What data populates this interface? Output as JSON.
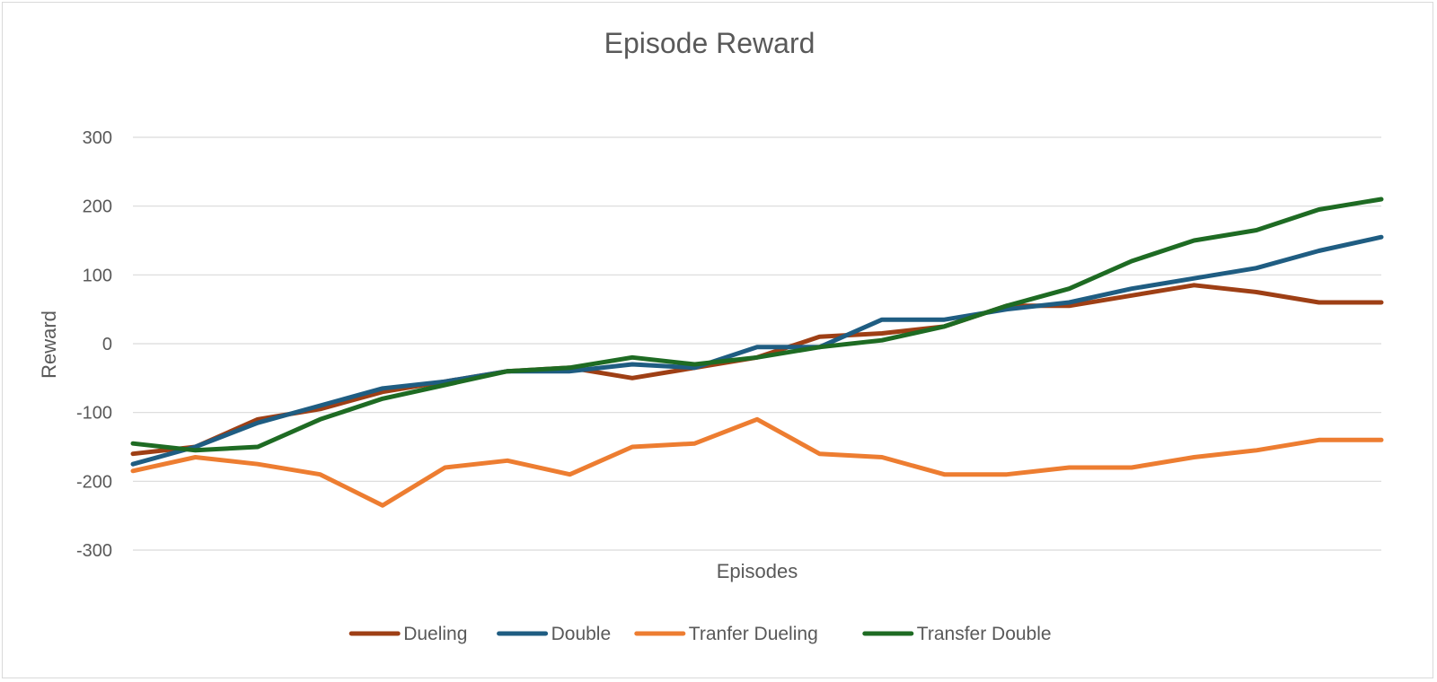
{
  "chart_data": {
    "type": "line",
    "title": "Episode Reward",
    "xlabel": "Episodes",
    "ylabel": "Reward",
    "ylim": [
      -300,
      300
    ],
    "yticks": [
      300,
      200,
      100,
      0,
      -100,
      -200,
      -300
    ],
    "x": [
      0,
      25,
      50,
      75,
      100,
      125,
      150,
      175,
      200,
      225,
      250,
      275,
      300,
      325,
      350,
      375,
      400,
      425,
      450,
      475,
      500
    ],
    "grid": true,
    "legend_position": "bottom",
    "series": [
      {
        "name": "Dueling",
        "color": "#9e3f15",
        "values": [
          -160,
          -150,
          -110,
          -95,
          -70,
          -55,
          -40,
          -35,
          -50,
          -35,
          -20,
          10,
          15,
          25,
          55,
          55,
          70,
          85,
          75,
          60,
          60
        ]
      },
      {
        "name": "Double",
        "color": "#1f5d82",
        "values": [
          -175,
          -150,
          -115,
          -90,
          -65,
          -55,
          -40,
          -40,
          -30,
          -35,
          -5,
          -5,
          35,
          35,
          50,
          60,
          80,
          95,
          110,
          135,
          155
        ]
      },
      {
        "name": "Tranfer Dueling",
        "color": "#ed7d31",
        "values": [
          -185,
          -165,
          -175,
          -190,
          -235,
          -180,
          -170,
          -190,
          -150,
          -145,
          -110,
          -160,
          -165,
          -190,
          -190,
          -180,
          -180,
          -165,
          -155,
          -140,
          -140
        ]
      },
      {
        "name": "Transfer Double",
        "color": "#1e6b23",
        "values": [
          -145,
          -155,
          -150,
          -110,
          -80,
          -60,
          -40,
          -35,
          -20,
          -30,
          -20,
          -5,
          5,
          25,
          55,
          80,
          120,
          150,
          165,
          195,
          210
        ]
      }
    ]
  }
}
